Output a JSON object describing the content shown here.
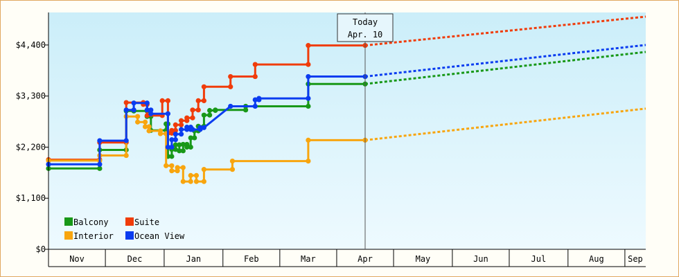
{
  "chart_data": {
    "type": "line",
    "y_ticks": [
      {
        "value": 0,
        "label": "$0"
      },
      {
        "value": 1100,
        "label": "$1,100"
      },
      {
        "value": 2200,
        "label": "$2,200"
      },
      {
        "value": 3300,
        "label": "$3,300"
      },
      {
        "value": 4400,
        "label": "$4,400"
      }
    ],
    "ylim": [
      0,
      5100
    ],
    "months": [
      {
        "label": "Nov",
        "start": "2023-10-26",
        "end": "2023-11-25"
      },
      {
        "label": "Dec",
        "start": "2023-11-25",
        "end": "2023-12-26"
      },
      {
        "label": "Jan",
        "start": "2023-12-26",
        "end": "2024-01-26"
      },
      {
        "label": "Feb",
        "start": "2024-01-26",
        "end": "2024-02-25"
      },
      {
        "label": "Mar",
        "start": "2024-02-25",
        "end": "2024-03-26"
      },
      {
        "label": "Apr",
        "start": "2024-03-26",
        "end": "2024-04-25"
      },
      {
        "label": "May",
        "start": "2024-04-25",
        "end": "2024-05-26"
      },
      {
        "label": "Jun",
        "start": "2024-05-26",
        "end": "2024-06-25"
      },
      {
        "label": "Jul",
        "start": "2024-06-25",
        "end": "2024-07-26"
      },
      {
        "label": "Aug",
        "start": "2024-07-26",
        "end": "2024-08-25"
      },
      {
        "label": "Sep",
        "start": "2024-08-25",
        "end": "2024-09-05"
      }
    ],
    "x_range": [
      "2023-10-26",
      "2024-09-05"
    ],
    "today": {
      "line1": "Today",
      "line2": "Apr. 10",
      "date": "2024-04-10"
    },
    "legend": [
      {
        "name": "Balcony",
        "color": "#189818"
      },
      {
        "name": "Suite",
        "color": "#f03c0a"
      },
      {
        "name": "Interior",
        "color": "#f8a50e"
      },
      {
        "name": "Ocean View",
        "color": "#0a3cf0"
      }
    ],
    "series": [
      {
        "name": "Balcony",
        "color": "#189818",
        "values": [
          [
            "2023-10-26",
            1740
          ],
          [
            "2023-11-22",
            1740
          ],
          [
            "2023-11-22",
            2140
          ],
          [
            "2023-12-06",
            2140
          ],
          [
            "2023-12-06",
            2980
          ],
          [
            "2023-12-10",
            2980
          ],
          [
            "2023-12-10",
            2980
          ],
          [
            "2023-12-17",
            2980
          ],
          [
            "2023-12-17",
            2860
          ],
          [
            "2023-12-19",
            2860
          ],
          [
            "2023-12-19",
            2560
          ],
          [
            "2023-12-27",
            2560
          ],
          [
            "2023-12-27",
            2700
          ],
          [
            "2023-12-28",
            2700
          ],
          [
            "2023-12-28",
            2000
          ],
          [
            "2023-12-30",
            2000
          ],
          [
            "2023-12-30",
            2150
          ],
          [
            "2024-01-01",
            2150
          ],
          [
            "2024-01-01",
            2250
          ],
          [
            "2024-01-03",
            2250
          ],
          [
            "2024-01-03",
            2120
          ],
          [
            "2024-01-05",
            2120
          ],
          [
            "2024-01-05",
            2260
          ],
          [
            "2024-01-07",
            2260
          ],
          [
            "2024-01-07",
            2200
          ],
          [
            "2024-01-09",
            2200
          ],
          [
            "2024-01-09",
            2400
          ],
          [
            "2024-01-11",
            2400
          ],
          [
            "2024-01-11",
            2550
          ],
          [
            "2024-01-13",
            2550
          ],
          [
            "2024-01-13",
            2650
          ],
          [
            "2024-01-16",
            2650
          ],
          [
            "2024-01-16",
            2890
          ],
          [
            "2024-01-19",
            2890
          ],
          [
            "2024-01-19",
            2990
          ],
          [
            "2024-01-22",
            2990
          ],
          [
            "2024-01-22",
            3000
          ],
          [
            "2024-02-07",
            3000
          ],
          [
            "2024-02-07",
            3080
          ],
          [
            "2024-03-11",
            3080
          ],
          [
            "2024-03-11",
            3560
          ],
          [
            "2024-04-10",
            3560
          ]
        ],
        "forecast": [
          [
            "2024-04-10",
            3560
          ],
          [
            "2024-09-05",
            4250
          ]
        ]
      },
      {
        "name": "Suite",
        "color": "#f03c0a",
        "values": [
          [
            "2023-10-26",
            1930
          ],
          [
            "2023-11-22",
            1930
          ],
          [
            "2023-11-22",
            2300
          ],
          [
            "2023-12-06",
            2300
          ],
          [
            "2023-12-06",
            3160
          ],
          [
            "2023-12-15",
            3160
          ],
          [
            "2023-12-15",
            3120
          ],
          [
            "2023-12-17",
            3120
          ],
          [
            "2023-12-17",
            2880
          ],
          [
            "2023-12-25",
            2880
          ],
          [
            "2023-12-25",
            3200
          ],
          [
            "2023-12-28",
            3200
          ],
          [
            "2023-12-28",
            2500
          ],
          [
            "2023-12-30",
            2500
          ],
          [
            "2023-12-30",
            2560
          ],
          [
            "2024-01-01",
            2560
          ],
          [
            "2024-01-01",
            2680
          ],
          [
            "2024-01-04",
            2680
          ],
          [
            "2024-01-04",
            2770
          ],
          [
            "2024-01-07",
            2770
          ],
          [
            "2024-01-07",
            2830
          ],
          [
            "2024-01-10",
            2830
          ],
          [
            "2024-01-10",
            3000
          ],
          [
            "2024-01-13",
            3000
          ],
          [
            "2024-01-13",
            3200
          ],
          [
            "2024-01-16",
            3200
          ],
          [
            "2024-01-16",
            3500
          ],
          [
            "2024-01-30",
            3500
          ],
          [
            "2024-01-30",
            3720
          ],
          [
            "2024-02-12",
            3720
          ],
          [
            "2024-02-12",
            3980
          ],
          [
            "2024-03-11",
            3980
          ],
          [
            "2024-03-11",
            4390
          ],
          [
            "2024-04-10",
            4390
          ]
        ],
        "forecast": [
          [
            "2024-04-10",
            4390
          ],
          [
            "2024-09-05",
            5010
          ]
        ]
      },
      {
        "name": "Interior",
        "color": "#f8a50e",
        "values": [
          [
            "2023-10-26",
            1910
          ],
          [
            "2023-11-22",
            1910
          ],
          [
            "2023-11-22",
            2020
          ],
          [
            "2023-12-06",
            2020
          ],
          [
            "2023-12-06",
            2860
          ],
          [
            "2023-12-12",
            2860
          ],
          [
            "2023-12-12",
            2740
          ],
          [
            "2023-12-16",
            2740
          ],
          [
            "2023-12-16",
            2640
          ],
          [
            "2023-12-18",
            2640
          ],
          [
            "2023-12-18",
            2550
          ],
          [
            "2023-12-24",
            2550
          ],
          [
            "2023-12-24",
            2490
          ],
          [
            "2023-12-27",
            2490
          ],
          [
            "2023-12-27",
            1800
          ],
          [
            "2023-12-30",
            1800
          ],
          [
            "2023-12-30",
            1690
          ],
          [
            "2024-01-02",
            1690
          ],
          [
            "2024-01-02",
            1760
          ],
          [
            "2024-01-05",
            1760
          ],
          [
            "2024-01-05",
            1460
          ],
          [
            "2024-01-09",
            1460
          ],
          [
            "2024-01-09",
            1590
          ],
          [
            "2024-01-12",
            1590
          ],
          [
            "2024-01-12",
            1460
          ],
          [
            "2024-01-16",
            1460
          ],
          [
            "2024-01-16",
            1720
          ],
          [
            "2024-01-31",
            1720
          ],
          [
            "2024-01-31",
            1900
          ],
          [
            "2024-03-11",
            1900
          ],
          [
            "2024-03-11",
            2350
          ],
          [
            "2024-04-10",
            2350
          ]
        ],
        "forecast": [
          [
            "2024-04-10",
            2350
          ],
          [
            "2024-09-05",
            3030
          ]
        ]
      },
      {
        "name": "Ocean View",
        "color": "#0a3cf0",
        "values": [
          [
            "2023-10-26",
            1830
          ],
          [
            "2023-11-22",
            1830
          ],
          [
            "2023-11-22",
            2340
          ],
          [
            "2023-12-06",
            2340
          ],
          [
            "2023-12-06",
            3000
          ],
          [
            "2023-12-10",
            3000
          ],
          [
            "2023-12-10",
            3150
          ],
          [
            "2023-12-17",
            3150
          ],
          [
            "2023-12-17",
            3000
          ],
          [
            "2023-12-19",
            3000
          ],
          [
            "2023-12-19",
            2920
          ],
          [
            "2023-12-28",
            2920
          ],
          [
            "2023-12-28",
            2200
          ],
          [
            "2023-12-30",
            2200
          ],
          [
            "2023-12-30",
            2360
          ],
          [
            "2024-01-01",
            2360
          ],
          [
            "2024-01-01",
            2480
          ],
          [
            "2024-01-04",
            2480
          ],
          [
            "2024-01-04",
            2580
          ],
          [
            "2024-01-07",
            2580
          ],
          [
            "2024-01-07",
            2630
          ],
          [
            "2024-01-09",
            2630
          ],
          [
            "2024-01-09",
            2580
          ],
          [
            "2024-01-10",
            2580
          ],
          [
            "2024-01-10",
            2580
          ],
          [
            "2024-01-14",
            2580
          ],
          [
            "2024-01-14",
            2620
          ],
          [
            "2024-01-16",
            2620
          ],
          [
            "2024-01-30",
            3080
          ],
          [
            "2024-02-12",
            3080
          ],
          [
            "2024-02-12",
            3220
          ],
          [
            "2024-02-14",
            3220
          ],
          [
            "2024-02-14",
            3250
          ],
          [
            "2024-03-11",
            3250
          ],
          [
            "2024-03-11",
            3720
          ],
          [
            "2024-04-10",
            3720
          ]
        ],
        "forecast": [
          [
            "2024-04-10",
            3720
          ],
          [
            "2024-09-05",
            4400
          ]
        ]
      }
    ],
    "colors": {
      "plot_top": "#cbeef9",
      "plot_bottom": "#eefaff",
      "frame": "#e0a860",
      "today_line": "#555555"
    }
  }
}
